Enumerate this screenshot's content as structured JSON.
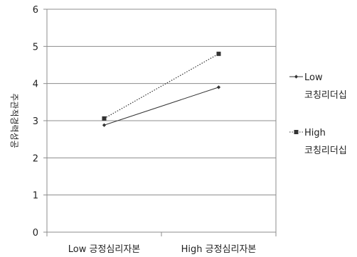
{
  "chart_data": {
    "type": "line",
    "categories": [
      "Low 긍정심리자본",
      "High 긍정심리자본"
    ],
    "series": [
      {
        "name": "Low 코칭리더십",
        "values": [
          2.88,
          3.9
        ],
        "marker": "diamond",
        "line_style": "solid",
        "color": "#333333"
      },
      {
        "name": "High 코칭리더십",
        "values": [
          3.06,
          4.8
        ],
        "marker": "square",
        "line_style": "dotted",
        "color": "#333333"
      }
    ],
    "title": "",
    "xlabel": "",
    "ylabel": "주관적경력성공",
    "ylim": [
      0,
      6
    ],
    "yticks": [
      0,
      1,
      2,
      3,
      4,
      5,
      6
    ],
    "grid": true,
    "legend_position": "right",
    "legend": [
      {
        "line1": "Low",
        "line2": "코칭리더십"
      },
      {
        "line1": "High",
        "line2": "코칭리더십"
      }
    ]
  }
}
